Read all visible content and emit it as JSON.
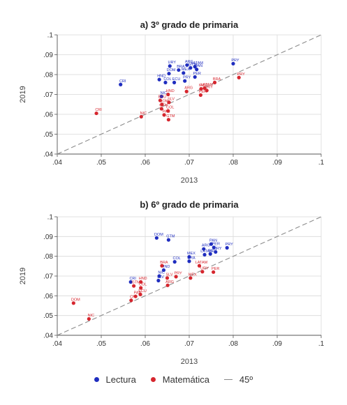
{
  "legend": {
    "s1": "Lectura",
    "s2": "Matemática",
    "ref": "45º"
  },
  "colors": {
    "lectura": "#1f2dbf",
    "matematica": "#d6262e",
    "reference": "#8c8c8c",
    "grid": "#d9d9d9",
    "axis": "#555555"
  },
  "chart_data": [
    {
      "type": "scatter",
      "title": "a) 3º grado de primaria",
      "xlabel": "2013",
      "ylabel": "2019",
      "xlim": [
        0.04,
        0.1
      ],
      "ylim": [
        0.04,
        0.1
      ],
      "xticks": [
        ".04",
        ".05",
        ".06",
        ".07",
        ".08",
        ".09",
        ".1"
      ],
      "yticks": [
        ".04",
        ".05",
        ".06",
        ".07",
        ".08",
        ".09",
        ".1"
      ],
      "grid": true,
      "reference_line": "45º",
      "series": [
        {
          "name": "Lectura",
          "points": [
            {
              "label": "CRI",
              "x": 0.0544,
              "y": 0.075
            },
            {
              "label": "HND",
              "x": 0.0632,
              "y": 0.0775
            },
            {
              "label": "DOM",
              "x": 0.0654,
              "y": 0.0805
            },
            {
              "label": "URY",
              "x": 0.0656,
              "y": 0.0843
            },
            {
              "label": "BRA",
              "x": 0.0676,
              "y": 0.0823
            },
            {
              "label": "ARG",
              "x": 0.0695,
              "y": 0.0848
            },
            {
              "label": "MEX",
              "x": 0.0687,
              "y": 0.0808
            },
            {
              "label": "LATAM",
              "x": 0.0713,
              "y": 0.084
            },
            {
              "label": "PAN",
              "x": 0.0717,
              "y": 0.0826
            },
            {
              "label": "GTM",
              "x": 0.0703,
              "y": 0.0834
            },
            {
              "label": "PER",
              "x": 0.0713,
              "y": 0.0788
            },
            {
              "label": "COL",
              "x": 0.0646,
              "y": 0.076
            },
            {
              "label": "ECU",
              "x": 0.0666,
              "y": 0.076
            },
            {
              "label": "PRY",
              "x": 0.069,
              "y": 0.0768
            },
            {
              "label": "NIC",
              "x": 0.0637,
              "y": 0.069
            },
            {
              "label": "PRY",
              "x": 0.08,
              "y": 0.0855
            }
          ]
        },
        {
          "name": "Matemática",
          "points": [
            {
              "label": "CRI",
              "x": 0.0489,
              "y": 0.0605
            },
            {
              "label": "NIC",
              "x": 0.0591,
              "y": 0.0588
            },
            {
              "label": "ECU",
              "x": 0.0634,
              "y": 0.067
            },
            {
              "label": "DOM",
              "x": 0.0638,
              "y": 0.065
            },
            {
              "label": "GTM",
              "x": 0.0637,
              "y": 0.0628
            },
            {
              "label": "SLV",
              "x": 0.0654,
              "y": 0.066
            },
            {
              "label": "COL",
              "x": 0.0652,
              "y": 0.0617
            },
            {
              "label": "PAN",
              "x": 0.0643,
              "y": 0.0597
            },
            {
              "label": "GTM",
              "x": 0.0653,
              "y": 0.0573
            },
            {
              "label": "HND",
              "x": 0.0652,
              "y": 0.07
            },
            {
              "label": "ARG",
              "x": 0.0694,
              "y": 0.0715
            },
            {
              "label": "MEX",
              "x": 0.0727,
              "y": 0.0728
            },
            {
              "label": "PER",
              "x": 0.0726,
              "y": 0.0697
            },
            {
              "label": "LATAM",
              "x": 0.0735,
              "y": 0.0732
            },
            {
              "label": "URY",
              "x": 0.074,
              "y": 0.072
            },
            {
              "label": "BRA",
              "x": 0.0758,
              "y": 0.076
            },
            {
              "label": "PRY",
              "x": 0.0813,
              "y": 0.0785
            }
          ]
        }
      ]
    },
    {
      "type": "scatter",
      "title": "b) 6º grado de primaria",
      "xlabel": "2013",
      "ylabel": "2019",
      "xlim": [
        0.04,
        0.1
      ],
      "ylim": [
        0.04,
        0.1
      ],
      "xticks": [
        ".04",
        ".05",
        ".06",
        ".07",
        ".08",
        ".09",
        ".1"
      ],
      "yticks": [
        ".04",
        ".05",
        ".06",
        ".07",
        ".08",
        ".09",
        ".1"
      ],
      "grid": true,
      "reference_line": "45º",
      "series": [
        {
          "name": "Lectura",
          "points": [
            {
              "label": "DOM",
              "x": 0.0626,
              "y": 0.0893
            },
            {
              "label": "GTM",
              "x": 0.0653,
              "y": 0.0883
            },
            {
              "label": "PAN",
              "x": 0.075,
              "y": 0.0862
            },
            {
              "label": "PER",
              "x": 0.0756,
              "y": 0.0845
            },
            {
              "label": "PRY",
              "x": 0.0786,
              "y": 0.0843
            },
            {
              "label": "ARG",
              "x": 0.0733,
              "y": 0.0837
            },
            {
              "label": "URY",
              "x": 0.076,
              "y": 0.0822
            },
            {
              "label": "MEX",
              "x": 0.07,
              "y": 0.0797
            },
            {
              "label": "LATAM",
              "x": 0.0735,
              "y": 0.0808
            },
            {
              "label": "ECU",
              "x": 0.0748,
              "y": 0.0812
            },
            {
              "label": "COL",
              "x": 0.0667,
              "y": 0.0772
            },
            {
              "label": "BRA",
              "x": 0.07,
              "y": 0.0775
            },
            {
              "label": "HND",
              "x": 0.0642,
              "y": 0.073
            },
            {
              "label": "NIC",
              "x": 0.0632,
              "y": 0.07
            },
            {
              "label": "CRI",
              "x": 0.0567,
              "y": 0.067
            },
            {
              "label": "SLV",
              "x": 0.063,
              "y": 0.0677
            }
          ]
        },
        {
          "name": "Matemática",
          "points": [
            {
              "label": "DOM",
              "x": 0.0437,
              "y": 0.0563
            },
            {
              "label": "NIC",
              "x": 0.0472,
              "y": 0.0483
            },
            {
              "label": "CRI",
              "x": 0.0568,
              "y": 0.0577
            },
            {
              "label": "PAN",
              "x": 0.0578,
              "y": 0.0597
            },
            {
              "label": "GTM",
              "x": 0.0574,
              "y": 0.065
            },
            {
              "label": "ECU",
              "x": 0.0589,
              "y": 0.0607
            },
            {
              "label": "COL",
              "x": 0.059,
              "y": 0.064
            },
            {
              "label": "HND",
              "x": 0.059,
              "y": 0.067
            },
            {
              "label": "BRA",
              "x": 0.0638,
              "y": 0.0752
            },
            {
              "label": "SLV",
              "x": 0.065,
              "y": 0.069
            },
            {
              "label": "ARG",
              "x": 0.0651,
              "y": 0.0653
            },
            {
              "label": "PRY",
              "x": 0.067,
              "y": 0.0697
            },
            {
              "label": "MEX",
              "x": 0.0703,
              "y": 0.069
            },
            {
              "label": "LATAM",
              "x": 0.0723,
              "y": 0.0752
            },
            {
              "label": "URY",
              "x": 0.073,
              "y": 0.0722
            },
            {
              "label": "PER",
              "x": 0.0755,
              "y": 0.072
            }
          ]
        }
      ]
    }
  ]
}
